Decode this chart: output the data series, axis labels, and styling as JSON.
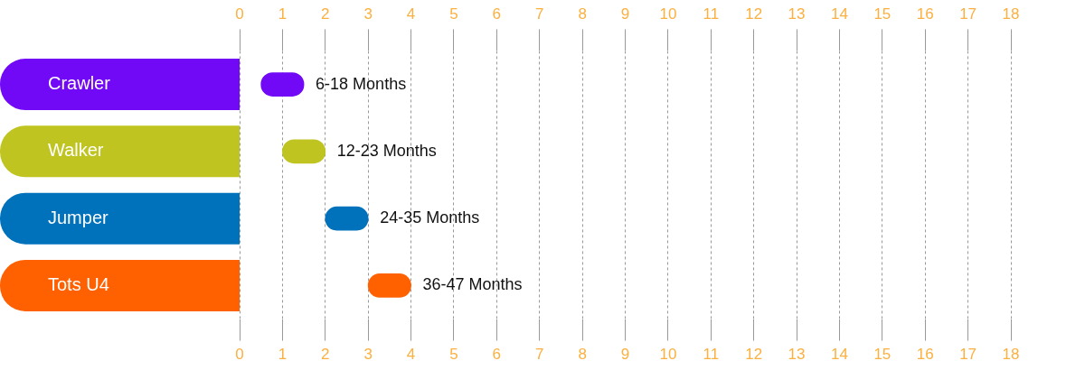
{
  "chart_data": {
    "type": "bar",
    "orientation": "horizontal",
    "categories": [
      "Crawler",
      "Walker",
      "Jumper",
      "Tots U4"
    ],
    "base": [
      0.5,
      1,
      2,
      3
    ],
    "values": [
      1,
      1,
      1,
      1
    ],
    "colors": [
      "#7108f6",
      "#bfc421",
      "#0071bb",
      "#ff6000"
    ],
    "value_labels": [
      "6-18 Months",
      "12-23 Months",
      "24-35 Months",
      "36-47 Months"
    ],
    "xlim": [
      0,
      18
    ],
    "xticks": [
      0,
      1,
      2,
      3,
      4,
      5,
      6,
      7,
      8,
      9,
      10,
      11,
      12,
      13,
      14,
      15,
      16,
      17,
      18
    ],
    "x2lim": [
      0,
      18
    ],
    "x2ticks": [
      0,
      1,
      2,
      3,
      4,
      5,
      6,
      7,
      8,
      9,
      10,
      11,
      12,
      13,
      14,
      15,
      16,
      17,
      18
    ],
    "grid": "x",
    "legend": false
  }
}
